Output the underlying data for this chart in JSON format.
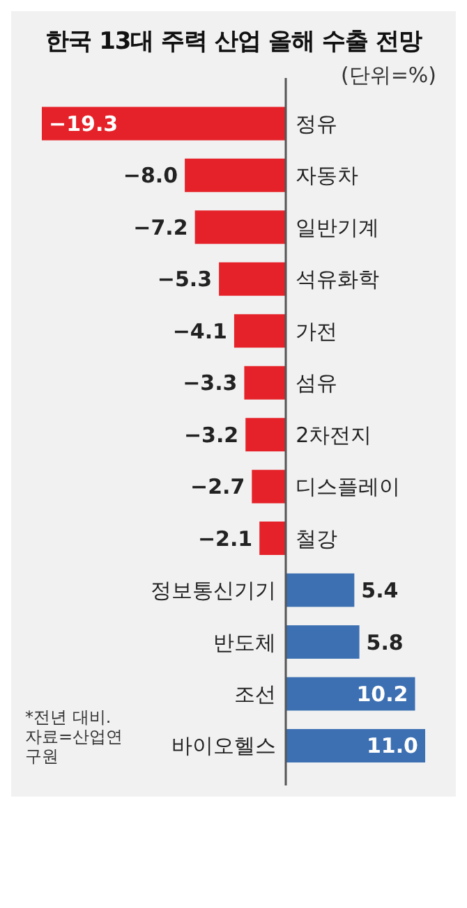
{
  "chart_data": {
    "type": "bar",
    "orientation": "horizontal",
    "title": "한국 13대 주력 산업 올해 수출 전망",
    "subtitle": "(단위=%)",
    "categories": [
      "정유",
      "자동차",
      "일반기계",
      "석유화학",
      "가전",
      "섬유",
      "2차전지",
      "디스플레이",
      "철강",
      "정보통신기기",
      "반도체",
      "조선",
      "바이오헬스"
    ],
    "values": [
      -19.3,
      -8.0,
      -7.2,
      -5.3,
      -4.1,
      -3.3,
      -3.2,
      -2.7,
      -2.1,
      5.4,
      5.8,
      10.2,
      11.0
    ],
    "value_labels": [
      "−19.3",
      "−8.0",
      "−7.2",
      "−5.3",
      "−4.1",
      "−3.3",
      "−3.2",
      "−2.7",
      "−2.1",
      "5.4",
      "5.8",
      "10.2",
      "11.0"
    ],
    "colors": [
      "#e52229",
      "#e52229",
      "#e52229",
      "#e52229",
      "#e52229",
      "#e52229",
      "#e52229",
      "#e52229",
      "#e52229",
      "#3d70b2",
      "#3d70b2",
      "#3d70b2",
      "#3d70b2"
    ],
    "annotations": [
      "*전년 대비. 자료=산업연구원"
    ]
  }
}
